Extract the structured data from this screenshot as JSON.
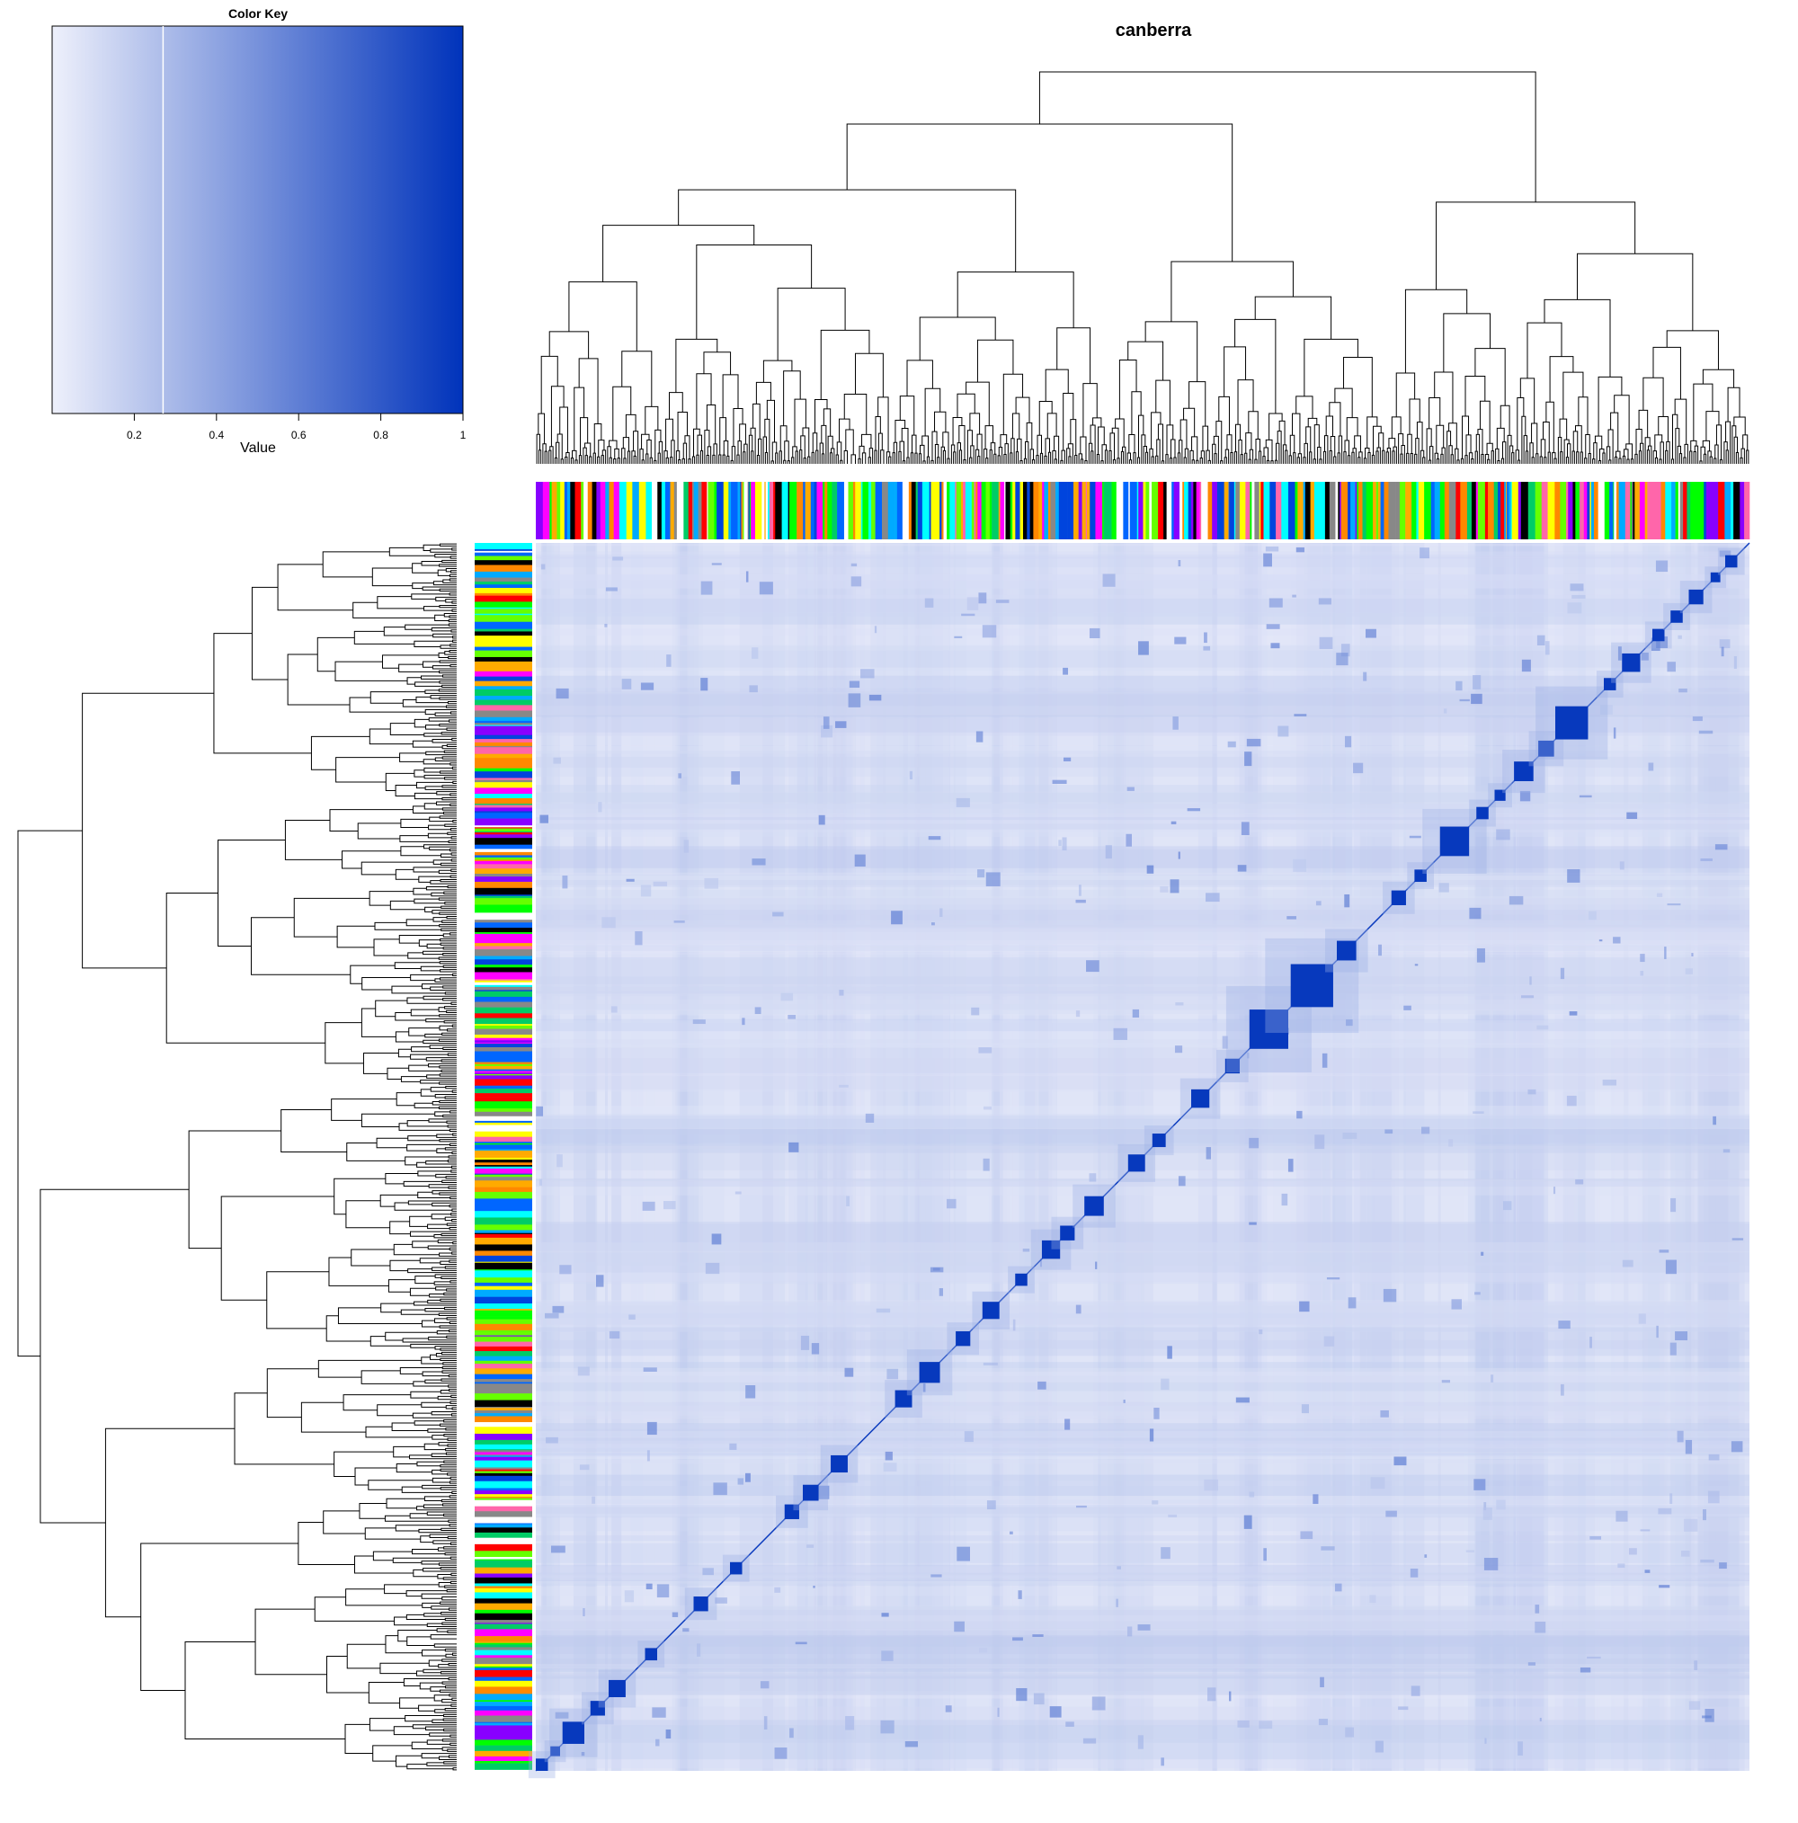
{
  "chart_data": {
    "type": "heatmap",
    "title": "canberra",
    "description": "Clustered distance matrix heatmap with row and column dendrograms and color side bars",
    "color_key": {
      "title": "Color Key",
      "xlabel": "Value",
      "ticks": [
        "0.2",
        "0.4",
        "0.6",
        "0.8",
        "1"
      ],
      "tick_values": [
        0.2,
        0.4,
        0.6,
        0.8,
        1.0
      ],
      "range": [
        0.0,
        1.0
      ],
      "color_low": "#eef0fb",
      "color_high": "#0033bb",
      "reference_line_value": 0.27
    },
    "diagonal_blocks": [
      {
        "start": 0.0,
        "size": 0.01
      },
      {
        "start": 0.012,
        "size": 0.008
      },
      {
        "start": 0.022,
        "size": 0.018
      },
      {
        "start": 0.045,
        "size": 0.012
      },
      {
        "start": 0.06,
        "size": 0.014
      },
      {
        "start": 0.09,
        "size": 0.01
      },
      {
        "start": 0.13,
        "size": 0.012
      },
      {
        "start": 0.16,
        "size": 0.01
      },
      {
        "start": 0.205,
        "size": 0.012
      },
      {
        "start": 0.22,
        "size": 0.013
      },
      {
        "start": 0.243,
        "size": 0.014
      },
      {
        "start": 0.296,
        "size": 0.014
      },
      {
        "start": 0.316,
        "size": 0.017
      },
      {
        "start": 0.346,
        "size": 0.012
      },
      {
        "start": 0.368,
        "size": 0.014
      },
      {
        "start": 0.395,
        "size": 0.01
      },
      {
        "start": 0.417,
        "size": 0.015
      },
      {
        "start": 0.432,
        "size": 0.012
      },
      {
        "start": 0.452,
        "size": 0.016
      },
      {
        "start": 0.488,
        "size": 0.014
      },
      {
        "start": 0.508,
        "size": 0.011
      },
      {
        "start": 0.54,
        "size": 0.015
      },
      {
        "start": 0.568,
        "size": 0.012
      },
      {
        "start": 0.588,
        "size": 0.032
      },
      {
        "start": 0.622,
        "size": 0.035
      },
      {
        "start": 0.66,
        "size": 0.016
      },
      {
        "start": 0.705,
        "size": 0.012
      },
      {
        "start": 0.724,
        "size": 0.01
      },
      {
        "start": 0.745,
        "size": 0.024
      },
      {
        "start": 0.775,
        "size": 0.01
      },
      {
        "start": 0.79,
        "size": 0.009
      },
      {
        "start": 0.806,
        "size": 0.016
      },
      {
        "start": 0.826,
        "size": 0.013
      },
      {
        "start": 0.84,
        "size": 0.027
      },
      {
        "start": 0.88,
        "size": 0.01
      },
      {
        "start": 0.895,
        "size": 0.015
      },
      {
        "start": 0.92,
        "size": 0.01
      },
      {
        "start": 0.935,
        "size": 0.01
      },
      {
        "start": 0.95,
        "size": 0.012
      },
      {
        "start": 0.968,
        "size": 0.008
      },
      {
        "start": 0.98,
        "size": 0.01
      }
    ],
    "side_bar_palette": [
      "#000000",
      "#ff0000",
      "#00ff00",
      "#0066ff",
      "#ffaa00",
      "#00ffff",
      "#ff00ff",
      "#8800ff",
      "#ffff00",
      "#00cc66",
      "#ff66aa",
      "#888888",
      "#00aaff",
      "#66ff00",
      "#0044dd",
      "#ffffff",
      "#ff8800"
    ],
    "dendrogram_color": "#000000"
  }
}
